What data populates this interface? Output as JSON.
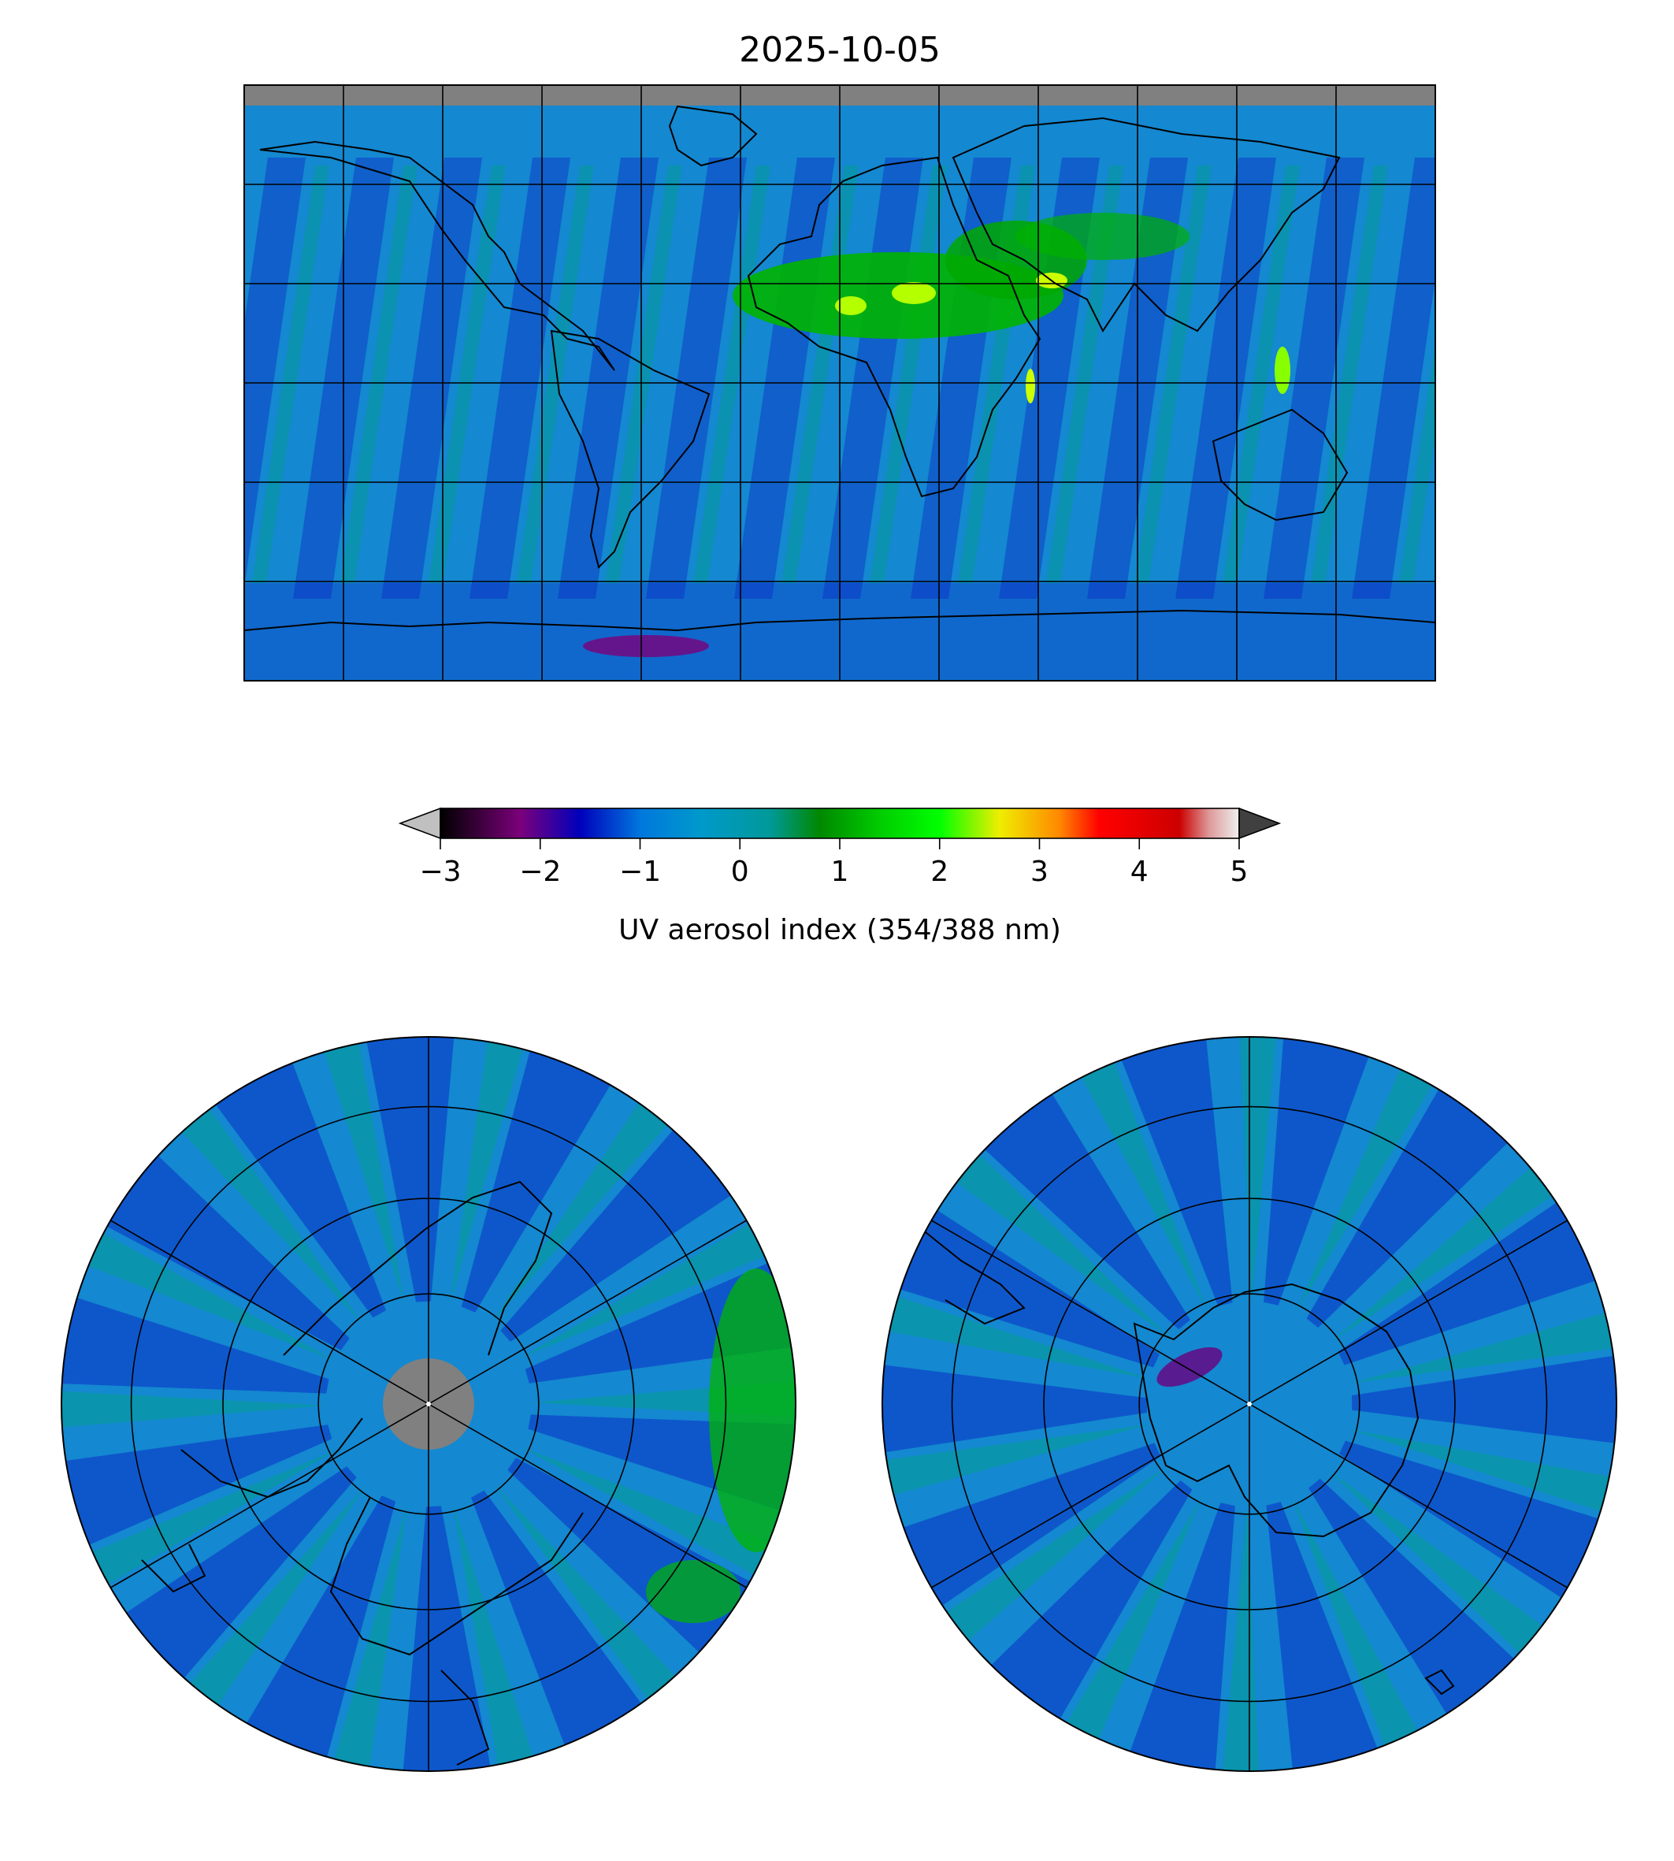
{
  "figure": {
    "title": "2025-10-05"
  },
  "colorbar": {
    "label": "UV aerosol index (354/388 nm)",
    "ticks": [
      "−3",
      "−2",
      "−1",
      "0",
      "1",
      "2",
      "3",
      "4",
      "5"
    ],
    "range": [
      -3,
      5
    ],
    "extend": "both",
    "under_color": "#c0c0c0",
    "over_color": "#404040",
    "stops": [
      {
        "v": -3.0,
        "c": "#000000"
      },
      {
        "v": -2.2,
        "c": "#7b007b"
      },
      {
        "v": -1.6,
        "c": "#0000bb"
      },
      {
        "v": -1.0,
        "c": "#0077dd"
      },
      {
        "v": -0.4,
        "c": "#0099cc"
      },
      {
        "v": 0.3,
        "c": "#009999"
      },
      {
        "v": 0.8,
        "c": "#008800"
      },
      {
        "v": 1.4,
        "c": "#00cc00"
      },
      {
        "v": 2.0,
        "c": "#00ff00"
      },
      {
        "v": 2.6,
        "c": "#eeee00"
      },
      {
        "v": 3.2,
        "c": "#ff8800"
      },
      {
        "v": 3.6,
        "c": "#ff0000"
      },
      {
        "v": 4.4,
        "c": "#cc0000"
      },
      {
        "v": 4.7,
        "c": "#dd9999"
      },
      {
        "v": 5.0,
        "c": "#f0f0f0"
      }
    ]
  },
  "panels": {
    "global": {
      "projection": "plate-carree",
      "no_data_color": "#808080"
    },
    "north": {
      "projection": "north-polar-orthographic",
      "no_data_color": "#808080"
    },
    "south": {
      "projection": "south-polar-orthographic"
    }
  },
  "colors": {
    "field_base": "#1488d0",
    "swath_low": "#0a2fc6",
    "elevated": "#00b400",
    "high": "#b4ff00",
    "coast": "#000000",
    "grid": "#000000"
  }
}
